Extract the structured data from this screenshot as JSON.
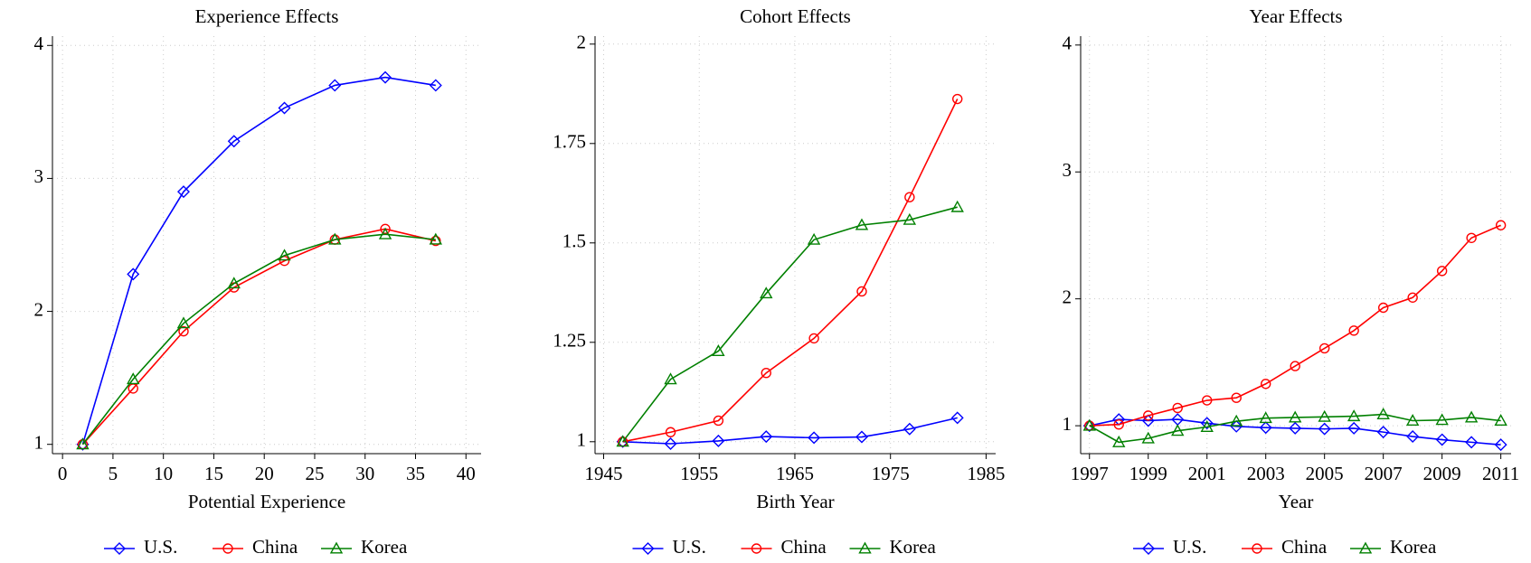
{
  "chart_data": [
    {
      "type": "line",
      "title": "Experience Effects",
      "x_label": "Potential Experience",
      "x": [
        2,
        7,
        12,
        17,
        22,
        27,
        32,
        37
      ],
      "xlim": [
        -1,
        41.5
      ],
      "xticks": [
        0,
        5,
        10,
        15,
        20,
        25,
        30,
        35,
        40
      ],
      "ylim": [
        0.93,
        4.07
      ],
      "yticks": [
        1,
        2,
        3,
        4
      ],
      "grid": true,
      "series": [
        {
          "name": "U.S.",
          "color": "#0000ff",
          "marker": "diamond",
          "values": [
            1,
            2.28,
            2.9,
            3.28,
            3.53,
            3.7,
            3.76,
            3.7
          ]
        },
        {
          "name": "China",
          "color": "#ff0000",
          "marker": "circle",
          "values": [
            1,
            1.42,
            1.85,
            2.18,
            2.38,
            2.54,
            2.62,
            2.53
          ]
        },
        {
          "name": "Korea",
          "color": "#008000",
          "marker": "triangle",
          "values": [
            1,
            1.49,
            1.91,
            2.21,
            2.42,
            2.54,
            2.58,
            2.54
          ]
        }
      ]
    },
    {
      "type": "line",
      "title": "Cohort Effects",
      "x_label": "Birth Year",
      "x": [
        1947,
        1952,
        1957,
        1962,
        1967,
        1972,
        1977,
        1982
      ],
      "xlim": [
        1944.1,
        1986
      ],
      "xticks": [
        1945,
        1955,
        1965,
        1975,
        1985
      ],
      "ylim": [
        0.97,
        2.02
      ],
      "yticks": [
        1,
        1.25,
        1.5,
        1.75,
        2
      ],
      "grid": true,
      "series": [
        {
          "name": "U.S.",
          "color": "#0000ff",
          "marker": "diamond",
          "values": [
            1,
            0.995,
            1.002,
            1.013,
            1.01,
            1.012,
            1.032,
            1.06
          ]
        },
        {
          "name": "China",
          "color": "#ff0000",
          "marker": "circle",
          "values": [
            1,
            1.024,
            1.053,
            1.173,
            1.26,
            1.378,
            1.615,
            1.862
          ]
        },
        {
          "name": "Korea",
          "color": "#008000",
          "marker": "triangle",
          "values": [
            1,
            1.157,
            1.228,
            1.373,
            1.508,
            1.545,
            1.558,
            1.59
          ]
        }
      ]
    },
    {
      "type": "line",
      "title": "Year Effects",
      "x_label": "Year",
      "x": [
        1997,
        1998,
        1999,
        2000,
        2001,
        2002,
        2003,
        2004,
        2005,
        2006,
        2007,
        2008,
        2009,
        2010,
        2011
      ],
      "xlim": [
        1996.7,
        2011.35
      ],
      "xticks": [
        1997,
        1999,
        2001,
        2003,
        2005,
        2007,
        2009,
        2011
      ],
      "ylim": [
        0.78,
        4.07
      ],
      "yticks": [
        1,
        2,
        3,
        4
      ],
      "grid": true,
      "series": [
        {
          "name": "U.S.",
          "color": "#0000ff",
          "marker": "diamond",
          "values": [
            1,
            1.05,
            1.04,
            1.05,
            1.02,
            0.995,
            0.985,
            0.98,
            0.975,
            0.98,
            0.95,
            0.915,
            0.89,
            0.87,
            0.85
          ]
        },
        {
          "name": "China",
          "color": "#ff0000",
          "marker": "circle",
          "values": [
            1,
            1.01,
            1.08,
            1.14,
            1.2,
            1.22,
            1.33,
            1.47,
            1.61,
            1.75,
            1.93,
            2.01,
            2.22,
            2.48,
            2.58
          ]
        },
        {
          "name": "Korea",
          "color": "#008000",
          "marker": "triangle",
          "values": [
            1,
            0.87,
            0.9,
            0.96,
            0.99,
            1.035,
            1.06,
            1.065,
            1.07,
            1.075,
            1.09,
            1.04,
            1.045,
            1.065,
            1.04
          ]
        }
      ]
    }
  ]
}
